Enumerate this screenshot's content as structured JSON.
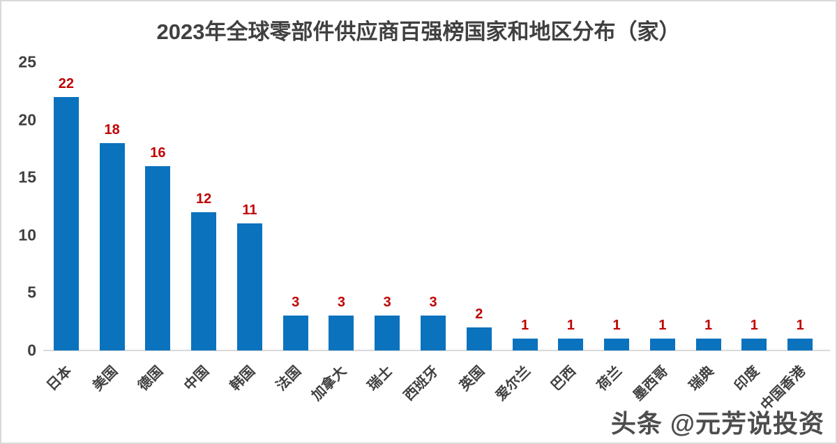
{
  "chart_data": {
    "type": "bar",
    "title": "2023年全球零部件供应商百强榜国家和地区分布（家）",
    "categories": [
      "日本",
      "美国",
      "德国",
      "中国",
      "韩国",
      "法国",
      "加拿大",
      "瑞士",
      "西班牙",
      "英国",
      "爱尔兰",
      "巴西",
      "荷兰",
      "墨西哥",
      "瑞典",
      "印度",
      "中国香港"
    ],
    "values": [
      22,
      18,
      16,
      12,
      11,
      3,
      3,
      3,
      3,
      2,
      1,
      1,
      1,
      1,
      1,
      1,
      1
    ],
    "xlabel": "",
    "ylabel": "",
    "ylim": [
      0,
      25
    ],
    "yticks": [
      0,
      5,
      10,
      15,
      20,
      25
    ],
    "grid": false,
    "legend": "none",
    "bar_color": "#0b72be",
    "value_label_color": "#c00000",
    "axis_text_color": "#404040",
    "axis_line_color": "#d9d9d9"
  },
  "watermark": {
    "text": "头条 @元芳说投资"
  }
}
